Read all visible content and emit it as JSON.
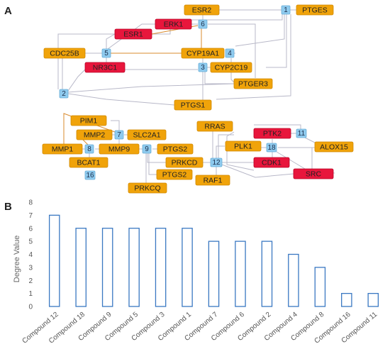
{
  "panels": {
    "a": "A",
    "b": "B"
  },
  "colors": {
    "orange": "#F0A30A",
    "red": "#E8163C",
    "blue": "#8FCBEF",
    "edge_gray": "#B8B8C8",
    "edge_orange": "#D98B2E",
    "bar_stroke": "#3A78C2"
  },
  "network": {
    "nodes": [
      {
        "id": "ESR2",
        "label": "ESR2",
        "kind": "gene-orange"
      },
      {
        "id": "N1",
        "label": "1",
        "kind": "compound"
      },
      {
        "id": "PTGES",
        "label": "PTGES",
        "kind": "gene-orange"
      },
      {
        "id": "ERK1",
        "label": "ERK1",
        "kind": "gene-red"
      },
      {
        "id": "N6",
        "label": "6",
        "kind": "compound"
      },
      {
        "id": "ESR1",
        "label": "ESR1",
        "kind": "gene-red"
      },
      {
        "id": "CDC25B",
        "label": "CDC25B",
        "kind": "gene-orange"
      },
      {
        "id": "N5",
        "label": "5",
        "kind": "compound"
      },
      {
        "id": "CYP19A1",
        "label": "CYP19A1",
        "kind": "gene-orange"
      },
      {
        "id": "N4",
        "label": "4",
        "kind": "compound"
      },
      {
        "id": "NR3C1",
        "label": "NR3C1",
        "kind": "gene-red"
      },
      {
        "id": "N3",
        "label": "3",
        "kind": "compound"
      },
      {
        "id": "CYP2C19",
        "label": "CYP2C19",
        "kind": "gene-orange"
      },
      {
        "id": "PTGER3",
        "label": "PTGER3",
        "kind": "gene-orange"
      },
      {
        "id": "N2",
        "label": "2",
        "kind": "compound"
      },
      {
        "id": "PTGS1",
        "label": "PTGS1",
        "kind": "gene-orange"
      },
      {
        "id": "PIM1",
        "label": "PIM1",
        "kind": "gene-orange"
      },
      {
        "id": "RRAS",
        "label": "RRAS",
        "kind": "gene-orange"
      },
      {
        "id": "PTK2",
        "label": "PTK2",
        "kind": "gene-red"
      },
      {
        "id": "N11",
        "label": "11",
        "kind": "compound"
      },
      {
        "id": "MMP2",
        "label": "MMP2",
        "kind": "gene-orange"
      },
      {
        "id": "N7",
        "label": "7",
        "kind": "compound"
      },
      {
        "id": "SLC2A1",
        "label": "SLC2A1",
        "kind": "gene-orange"
      },
      {
        "id": "PLK1",
        "label": "PLK1",
        "kind": "gene-orange"
      },
      {
        "id": "N18",
        "label": "18",
        "kind": "compound"
      },
      {
        "id": "ALOX15",
        "label": "ALOX15",
        "kind": "gene-orange"
      },
      {
        "id": "MMP1",
        "label": "MMP1",
        "kind": "gene-orange"
      },
      {
        "id": "N8",
        "label": "8",
        "kind": "compound"
      },
      {
        "id": "MMP9",
        "label": "MMP9",
        "kind": "gene-orange"
      },
      {
        "id": "N9",
        "label": "9",
        "kind": "compound"
      },
      {
        "id": "PTGS2a",
        "label": "PTGS2",
        "kind": "gene-orange"
      },
      {
        "id": "BCAT1",
        "label": "BCAT1",
        "kind": "gene-orange"
      },
      {
        "id": "PRKCD",
        "label": "PRKCD",
        "kind": "gene-orange"
      },
      {
        "id": "N12",
        "label": "12",
        "kind": "compound"
      },
      {
        "id": "CDK1",
        "label": "CDK1",
        "kind": "gene-red"
      },
      {
        "id": "SRC",
        "label": "SRC",
        "kind": "gene-red"
      },
      {
        "id": "N16",
        "label": "16",
        "kind": "compound"
      },
      {
        "id": "PTGS2b",
        "label": "PTGS2",
        "kind": "gene-orange"
      },
      {
        "id": "RAF1",
        "label": "RAF1",
        "kind": "gene-orange"
      },
      {
        "id": "PRKCQ",
        "label": "PRKCQ",
        "kind": "gene-orange"
      }
    ]
  },
  "chart_data": {
    "type": "bar",
    "categories": [
      "Compound 12",
      "Compound 18",
      "Compound 9",
      "Compound 5",
      "Compound 3",
      "Compound 1",
      "Compound 7",
      "Compound 6",
      "Compound 2",
      "Compound 4",
      "Compound 8",
      "Compound 16",
      "Compound 11"
    ],
    "values": [
      7,
      6,
      6,
      6,
      6,
      6,
      5,
      5,
      5,
      4,
      3,
      1,
      1
    ],
    "xlabel": "",
    "ylabel": "Degree Value",
    "ylim": [
      0,
      8
    ],
    "yticks": [
      "0",
      "1",
      "2",
      "3",
      "4",
      "5",
      "6",
      "7",
      "8"
    ],
    "grid": false
  }
}
